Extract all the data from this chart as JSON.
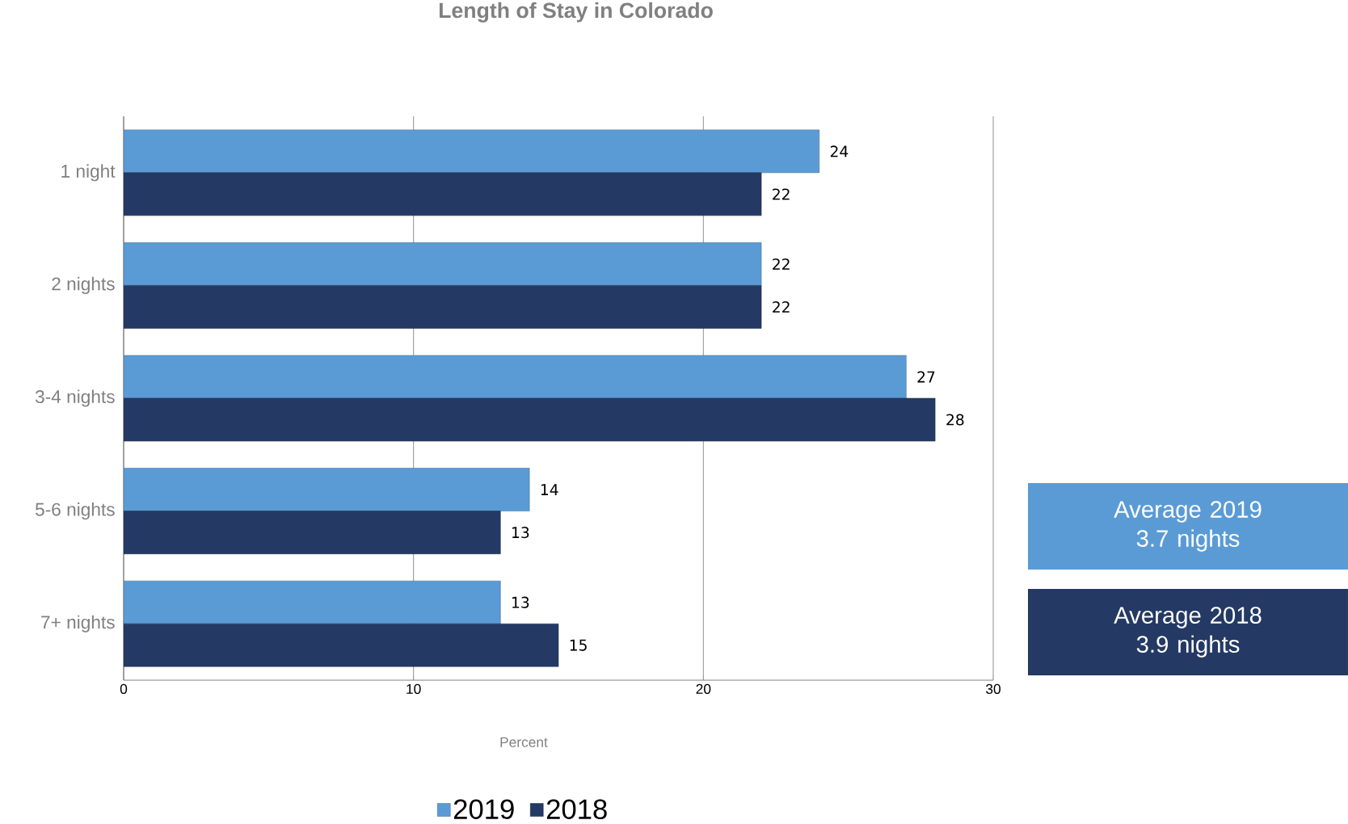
{
  "chart_data": {
    "type": "bar",
    "orientation": "horizontal",
    "title": "Length of Stay in Colorado",
    "xlabel": "Percent",
    "categories": [
      "1 night",
      "2 nights",
      "3-4 nights",
      "5-6 nights",
      "7+ nights"
    ],
    "series": [
      {
        "name": "2019",
        "color": "#5b9bd5",
        "values": [
          24,
          22,
          27,
          14,
          13
        ]
      },
      {
        "name": "2018",
        "color": "#243a64",
        "values": [
          22,
          22,
          28,
          13,
          15
        ]
      }
    ],
    "xlim": [
      0,
      30
    ],
    "xticks": [
      0,
      10,
      20,
      30
    ],
    "grid": "x",
    "legend": "bottom",
    "data_labels": true,
    "annotations": [
      "Average 2019 3.7 nights",
      "Average 2018 3.9 nights"
    ]
  }
}
